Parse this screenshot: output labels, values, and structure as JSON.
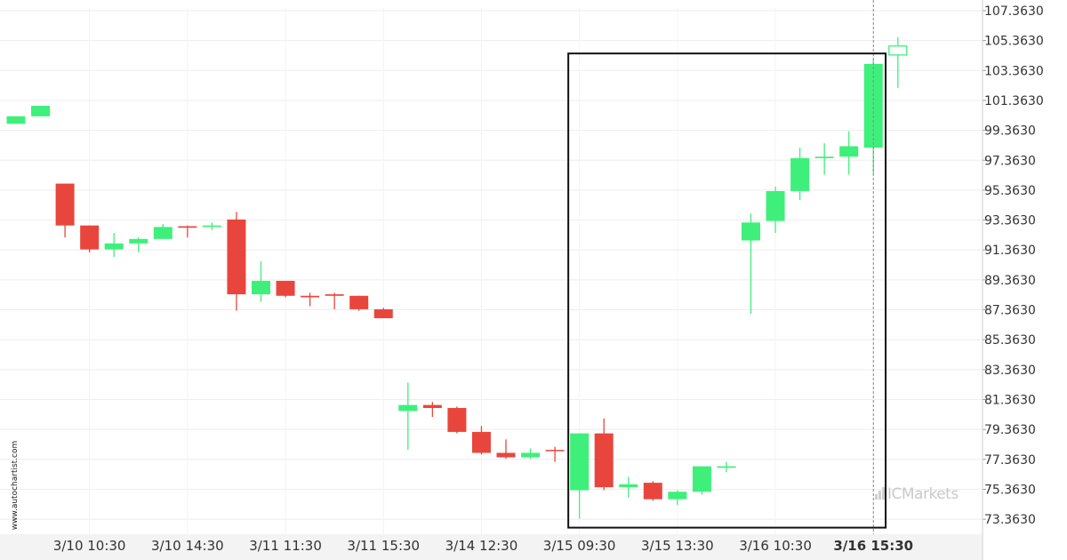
{
  "watermark": "www.autochartist.com",
  "brand": {
    "name": "ICMarkets"
  },
  "colors": {
    "up": "#3ef07a",
    "down": "#e8463c",
    "grid": "#eeeeee",
    "axis_band": "#f3f3f3"
  },
  "chart_data": {
    "type": "candlestick",
    "title": "",
    "ylim": [
      72.36,
      107.6
    ],
    "y_ticks": [
      "73.3630",
      "75.3630",
      "77.3630",
      "79.3630",
      "81.3630",
      "83.3630",
      "85.3630",
      "87.3630",
      "89.3630",
      "91.3630",
      "93.3630",
      "95.3630",
      "97.3630",
      "99.3630",
      "101.3630",
      "103.3630",
      "105.3630",
      "107.3630"
    ],
    "x_ticks": [
      {
        "label": "3/10 10:30",
        "index": 3
      },
      {
        "label": "3/10 14:30",
        "index": 7
      },
      {
        "label": "3/11 11:30",
        "index": 11
      },
      {
        "label": "3/11 15:30",
        "index": 15
      },
      {
        "label": "3/14 12:30",
        "index": 19
      },
      {
        "label": "3/15 09:30",
        "index": 23
      },
      {
        "label": "3/15 13:30",
        "index": 27
      },
      {
        "label": "3/16 10:30",
        "index": 31
      },
      {
        "label": "3/16 15:30",
        "index": 35,
        "bold": true
      }
    ],
    "candles": [
      {
        "o": 99.8,
        "h": 100.3,
        "l": 99.8,
        "c": 100.3
      },
      {
        "o": 100.3,
        "h": 101.0,
        "l": 100.3,
        "c": 101.0
      },
      {
        "o": 95.8,
        "h": 95.8,
        "l": 92.2,
        "c": 93.0
      },
      {
        "o": 93.0,
        "h": 93.0,
        "l": 91.2,
        "c": 91.4
      },
      {
        "o": 91.4,
        "h": 92.5,
        "l": 90.9,
        "c": 91.8
      },
      {
        "o": 91.8,
        "h": 92.2,
        "l": 91.2,
        "c": 92.1
      },
      {
        "o": 92.1,
        "h": 93.1,
        "l": 92.1,
        "c": 92.9
      },
      {
        "o": 92.95,
        "h": 93.0,
        "l": 92.2,
        "c": 92.85
      },
      {
        "o": 92.9,
        "h": 93.2,
        "l": 92.7,
        "c": 93.0
      },
      {
        "o": 93.4,
        "h": 93.9,
        "l": 87.3,
        "c": 88.4
      },
      {
        "o": 88.4,
        "h": 90.6,
        "l": 87.9,
        "c": 89.3
      },
      {
        "o": 89.3,
        "h": 89.3,
        "l": 88.2,
        "c": 88.3
      },
      {
        "o": 88.3,
        "h": 88.5,
        "l": 87.6,
        "c": 88.2
      },
      {
        "o": 88.4,
        "h": 88.5,
        "l": 87.4,
        "c": 88.3
      },
      {
        "o": 88.3,
        "h": 88.3,
        "l": 87.3,
        "c": 87.4
      },
      {
        "o": 87.4,
        "h": 87.5,
        "l": 86.8,
        "c": 86.8
      },
      {
        "o": 80.6,
        "h": 82.5,
        "l": 78.0,
        "c": 81.0
      },
      {
        "o": 81.0,
        "h": 81.2,
        "l": 80.2,
        "c": 80.8
      },
      {
        "o": 80.8,
        "h": 80.9,
        "l": 79.1,
        "c": 79.2
      },
      {
        "o": 79.2,
        "h": 79.6,
        "l": 77.7,
        "c": 77.8
      },
      {
        "o": 77.8,
        "h": 78.7,
        "l": 77.4,
        "c": 77.5
      },
      {
        "o": 77.5,
        "h": 78.1,
        "l": 77.4,
        "c": 77.8
      },
      {
        "o": 78.0,
        "h": 78.2,
        "l": 77.2,
        "c": 77.95
      },
      {
        "o": 75.3,
        "h": 79.1,
        "l": 73.4,
        "c": 79.1
      },
      {
        "o": 79.1,
        "h": 80.1,
        "l": 75.3,
        "c": 75.5
      },
      {
        "o": 75.5,
        "h": 76.2,
        "l": 74.8,
        "c": 75.7
      },
      {
        "o": 75.8,
        "h": 75.9,
        "l": 74.6,
        "c": 74.7
      },
      {
        "o": 74.7,
        "h": 75.3,
        "l": 74.3,
        "c": 75.2
      },
      {
        "o": 75.2,
        "h": 76.9,
        "l": 75.0,
        "c": 76.9
      },
      {
        "o": 76.8,
        "h": 77.2,
        "l": 76.5,
        "c": 76.9
      },
      {
        "o": 92.0,
        "h": 93.8,
        "l": 87.1,
        "c": 93.2
      },
      {
        "o": 93.3,
        "h": 95.6,
        "l": 92.5,
        "c": 95.3
      },
      {
        "o": 95.3,
        "h": 98.2,
        "l": 94.7,
        "c": 97.5
      },
      {
        "o": 97.5,
        "h": 98.5,
        "l": 96.4,
        "c": 97.6
      },
      {
        "o": 97.6,
        "h": 99.3,
        "l": 96.4,
        "c": 98.3
      },
      {
        "o": 98.2,
        "h": 104.1,
        "l": 96.4,
        "c": 103.8
      },
      {
        "o": 104.4,
        "h": 105.6,
        "l": 102.2,
        "c": 105.0,
        "open_candle": true
      }
    ],
    "pattern_box": {
      "start_index": 23,
      "end_index": 35.5,
      "y_low": 72.8,
      "y_high": 104.5
    },
    "current_marker_index": 35,
    "grid": true
  }
}
